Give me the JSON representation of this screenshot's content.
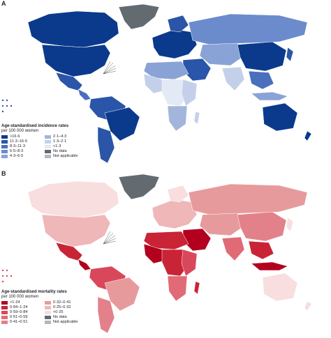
{
  "panels": [
    {
      "letter": "A",
      "legend_title_line1": "Age-standardised incidence rates",
      "legend_title_line2": "per 100 000 women",
      "legend": [
        {
          "label": ">16·6",
          "color": "#0b3a8c"
        },
        {
          "label": "2·1–4·3",
          "color": "#a3b5da"
        },
        {
          "label": "11·3–16·6",
          "color": "#2a55a8"
        },
        {
          "label": "1·3–2·1",
          "color": "#c4d0e9"
        },
        {
          "label": "8·3–11·3",
          "color": "#4a6fbd"
        },
        {
          "label": "<1·3",
          "color": "#e3e9f5"
        },
        {
          "label": "6·5–8·3",
          "color": "#6b8bcc"
        },
        {
          "label": "No data",
          "color": "#636a70"
        },
        {
          "label": "4·3–6·5",
          "color": "#8aa3d6"
        },
        {
          "label": "Not applicable",
          "color": "#b5b8ba"
        }
      ]
    },
    {
      "letter": "B",
      "legend_title_line1": "Age-standardised mortality rates",
      "legend_title_line2": "per 100 000 women",
      "legend": [
        {
          "label": ">1·24",
          "color": "#b3001e"
        },
        {
          "label": "0·32–0·41",
          "color": "#e79a9c"
        },
        {
          "label": "0·84–1·24",
          "color": "#c92436"
        },
        {
          "label": "0·25–0·32",
          "color": "#efb7b8"
        },
        {
          "label": "0·59–0·84",
          "color": "#d9485a"
        },
        {
          "label": "<0·25",
          "color": "#f8dede"
        },
        {
          "label": "0·51–0·59",
          "color": "#e06a76"
        },
        {
          "label": "No data",
          "color": "#636a70"
        },
        {
          "label": "0·41–0·51",
          "color": "#e3818a"
        },
        {
          "label": "Not applicable",
          "color": "#b5b8ba"
        }
      ]
    }
  ]
}
